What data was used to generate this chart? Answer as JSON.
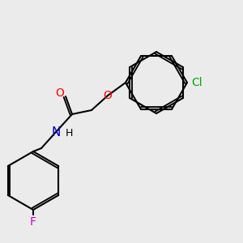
{
  "background_color": "#ebebeb",
  "bond_color": "#000000",
  "bond_width": 1.5,
  "atom_colors": {
    "O": "#ff0000",
    "N": "#0000cc",
    "Cl": "#00aa00",
    "F": "#cc00cc"
  },
  "font_size": 9,
  "font_size_large": 10
}
